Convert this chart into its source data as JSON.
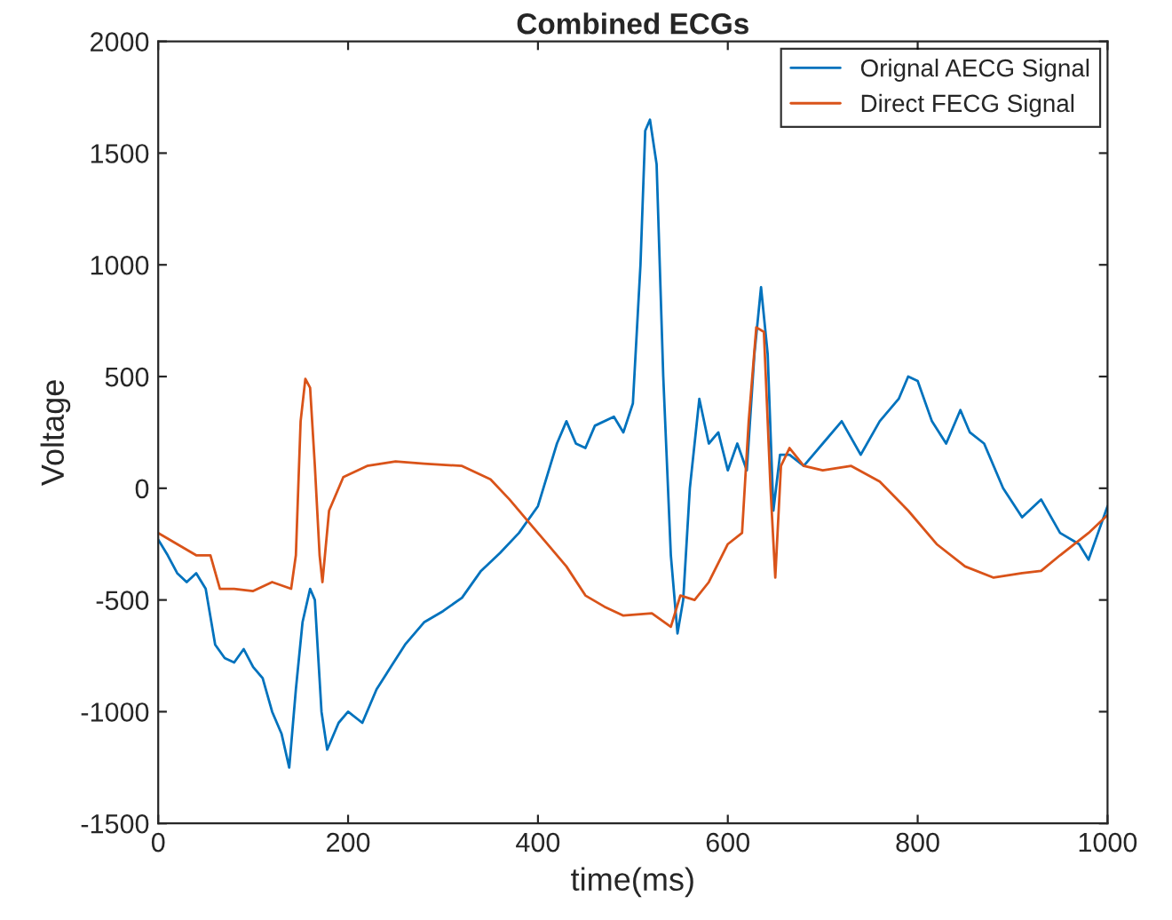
{
  "chart_data": {
    "type": "line",
    "title": "Combined ECGs",
    "xlabel": "time(ms)",
    "ylabel": "Voltage",
    "xlim": [
      0,
      1000
    ],
    "ylim": [
      -1500,
      2000
    ],
    "xticks": [
      0,
      200,
      400,
      600,
      800,
      1000
    ],
    "yticks": [
      -1500,
      -1000,
      -500,
      0,
      500,
      1000,
      1500,
      2000
    ],
    "grid": false,
    "legend": "top right",
    "marker": "none",
    "line_style": "solid",
    "series": [
      {
        "name": "Orignal AECG Signal",
        "color": "#0072bd",
        "x": [
          0,
          10,
          20,
          30,
          40,
          50,
          60,
          70,
          80,
          90,
          100,
          110,
          120,
          130,
          138,
          145,
          152,
          160,
          165,
          172,
          178,
          190,
          200,
          215,
          230,
          245,
          260,
          280,
          300,
          320,
          340,
          360,
          380,
          400,
          420,
          430,
          440,
          450,
          460,
          480,
          490,
          500,
          508,
          513,
          518,
          525,
          532,
          540,
          547,
          553,
          560,
          570,
          580,
          590,
          600,
          610,
          620,
          628,
          635,
          642,
          648,
          655,
          665,
          680,
          700,
          720,
          740,
          760,
          780,
          790,
          800,
          815,
          830,
          845,
          855,
          870,
          890,
          910,
          930,
          950,
          970,
          980,
          990,
          1000
        ],
        "values": [
          -230,
          -300,
          -380,
          -420,
          -380,
          -450,
          -700,
          -760,
          -780,
          -720,
          -800,
          -850,
          -1000,
          -1100,
          -1250,
          -900,
          -600,
          -450,
          -500,
          -1000,
          -1170,
          -1050,
          -1000,
          -1050,
          -900,
          -800,
          -700,
          -600,
          -550,
          -490,
          -370,
          -290,
          -200,
          -80,
          200,
          300,
          200,
          180,
          280,
          320,
          250,
          380,
          1000,
          1600,
          1650,
          1450,
          500,
          -300,
          -650,
          -500,
          0,
          400,
          200,
          250,
          80,
          200,
          80,
          600,
          900,
          600,
          -100,
          150,
          150,
          100,
          200,
          300,
          150,
          300,
          400,
          500,
          480,
          300,
          200,
          350,
          250,
          200,
          0,
          -130,
          -50,
          -200,
          -250,
          -320,
          -200,
          -80
        ]
      },
      {
        "name": "Direct FECG Signal",
        "color": "#d95319",
        "x": [
          0,
          20,
          40,
          55,
          65,
          80,
          100,
          120,
          140,
          145,
          150,
          155,
          160,
          165,
          170,
          173,
          180,
          195,
          220,
          250,
          280,
          320,
          350,
          370,
          390,
          410,
          430,
          450,
          470,
          490,
          520,
          540,
          550,
          565,
          580,
          600,
          615,
          622,
          630,
          638,
          645,
          650,
          656,
          665,
          680,
          700,
          730,
          760,
          790,
          820,
          850,
          880,
          910,
          930,
          950,
          980,
          1000
        ],
        "values": [
          -200,
          -250,
          -300,
          -300,
          -450,
          -450,
          -460,
          -420,
          -450,
          -300,
          300,
          490,
          450,
          100,
          -300,
          -420,
          -100,
          50,
          100,
          120,
          110,
          100,
          40,
          -50,
          -150,
          -250,
          -350,
          -480,
          -530,
          -570,
          -560,
          -620,
          -480,
          -500,
          -420,
          -250,
          -200,
          300,
          720,
          700,
          0,
          -400,
          100,
          180,
          100,
          80,
          100,
          30,
          -100,
          -250,
          -350,
          -400,
          -380,
          -370,
          -300,
          -200,
          -120
        ]
      }
    ]
  }
}
